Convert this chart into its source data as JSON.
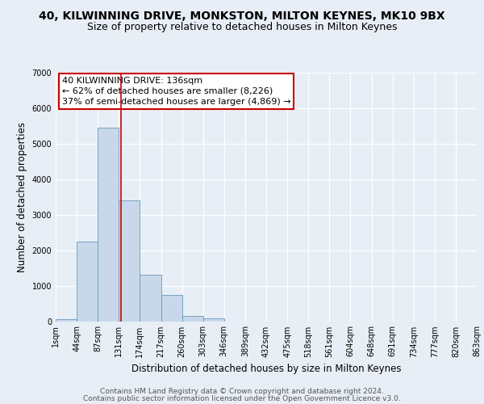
{
  "title_line1": "40, KILWINNING DRIVE, MONKSTON, MILTON KEYNES, MK10 9BX",
  "title_line2": "Size of property relative to detached houses in Milton Keynes",
  "xlabel": "Distribution of detached houses by size in Milton Keynes",
  "ylabel": "Number of detached properties",
  "footer_line1": "Contains HM Land Registry data © Crown copyright and database right 2024.",
  "footer_line2": "Contains public sector information licensed under the Open Government Licence v3.0.",
  "annotation_line1": "40 KILWINNING DRIVE: 136sqm",
  "annotation_line2": "← 62% of detached houses are smaller (8,226)",
  "annotation_line3": "37% of semi-detached houses are larger (4,869) →",
  "bar_values": [
    50,
    2250,
    5450,
    3400,
    1300,
    750,
    150,
    80,
    0,
    0,
    0,
    0,
    0,
    0,
    0,
    0,
    0,
    0,
    0,
    0
  ],
  "bar_color": "#c8d8ea",
  "bar_edgecolor": "#6699bb",
  "categories": [
    "1sqm",
    "44sqm",
    "87sqm",
    "131sqm",
    "174sqm",
    "217sqm",
    "260sqm",
    "303sqm",
    "346sqm",
    "389sqm",
    "432sqm",
    "475sqm",
    "518sqm",
    "561sqm",
    "604sqm",
    "648sqm",
    "691sqm",
    "734sqm",
    "777sqm",
    "820sqm",
    "863sqm"
  ],
  "ylim": [
    0,
    7000
  ],
  "yticks": [
    0,
    1000,
    2000,
    3000,
    4000,
    5000,
    6000,
    7000
  ],
  "bg_color": "#e8eef5",
  "plot_bg_color": "#e8eef5",
  "grid_color": "#ffffff",
  "annotation_box_color": "#ffffff",
  "annotation_box_edgecolor": "#cc0000",
  "title_fontsize": 10,
  "subtitle_fontsize": 9,
  "label_fontsize": 8.5,
  "tick_fontsize": 7,
  "footer_fontsize": 6.5,
  "ann_fontsize": 8
}
